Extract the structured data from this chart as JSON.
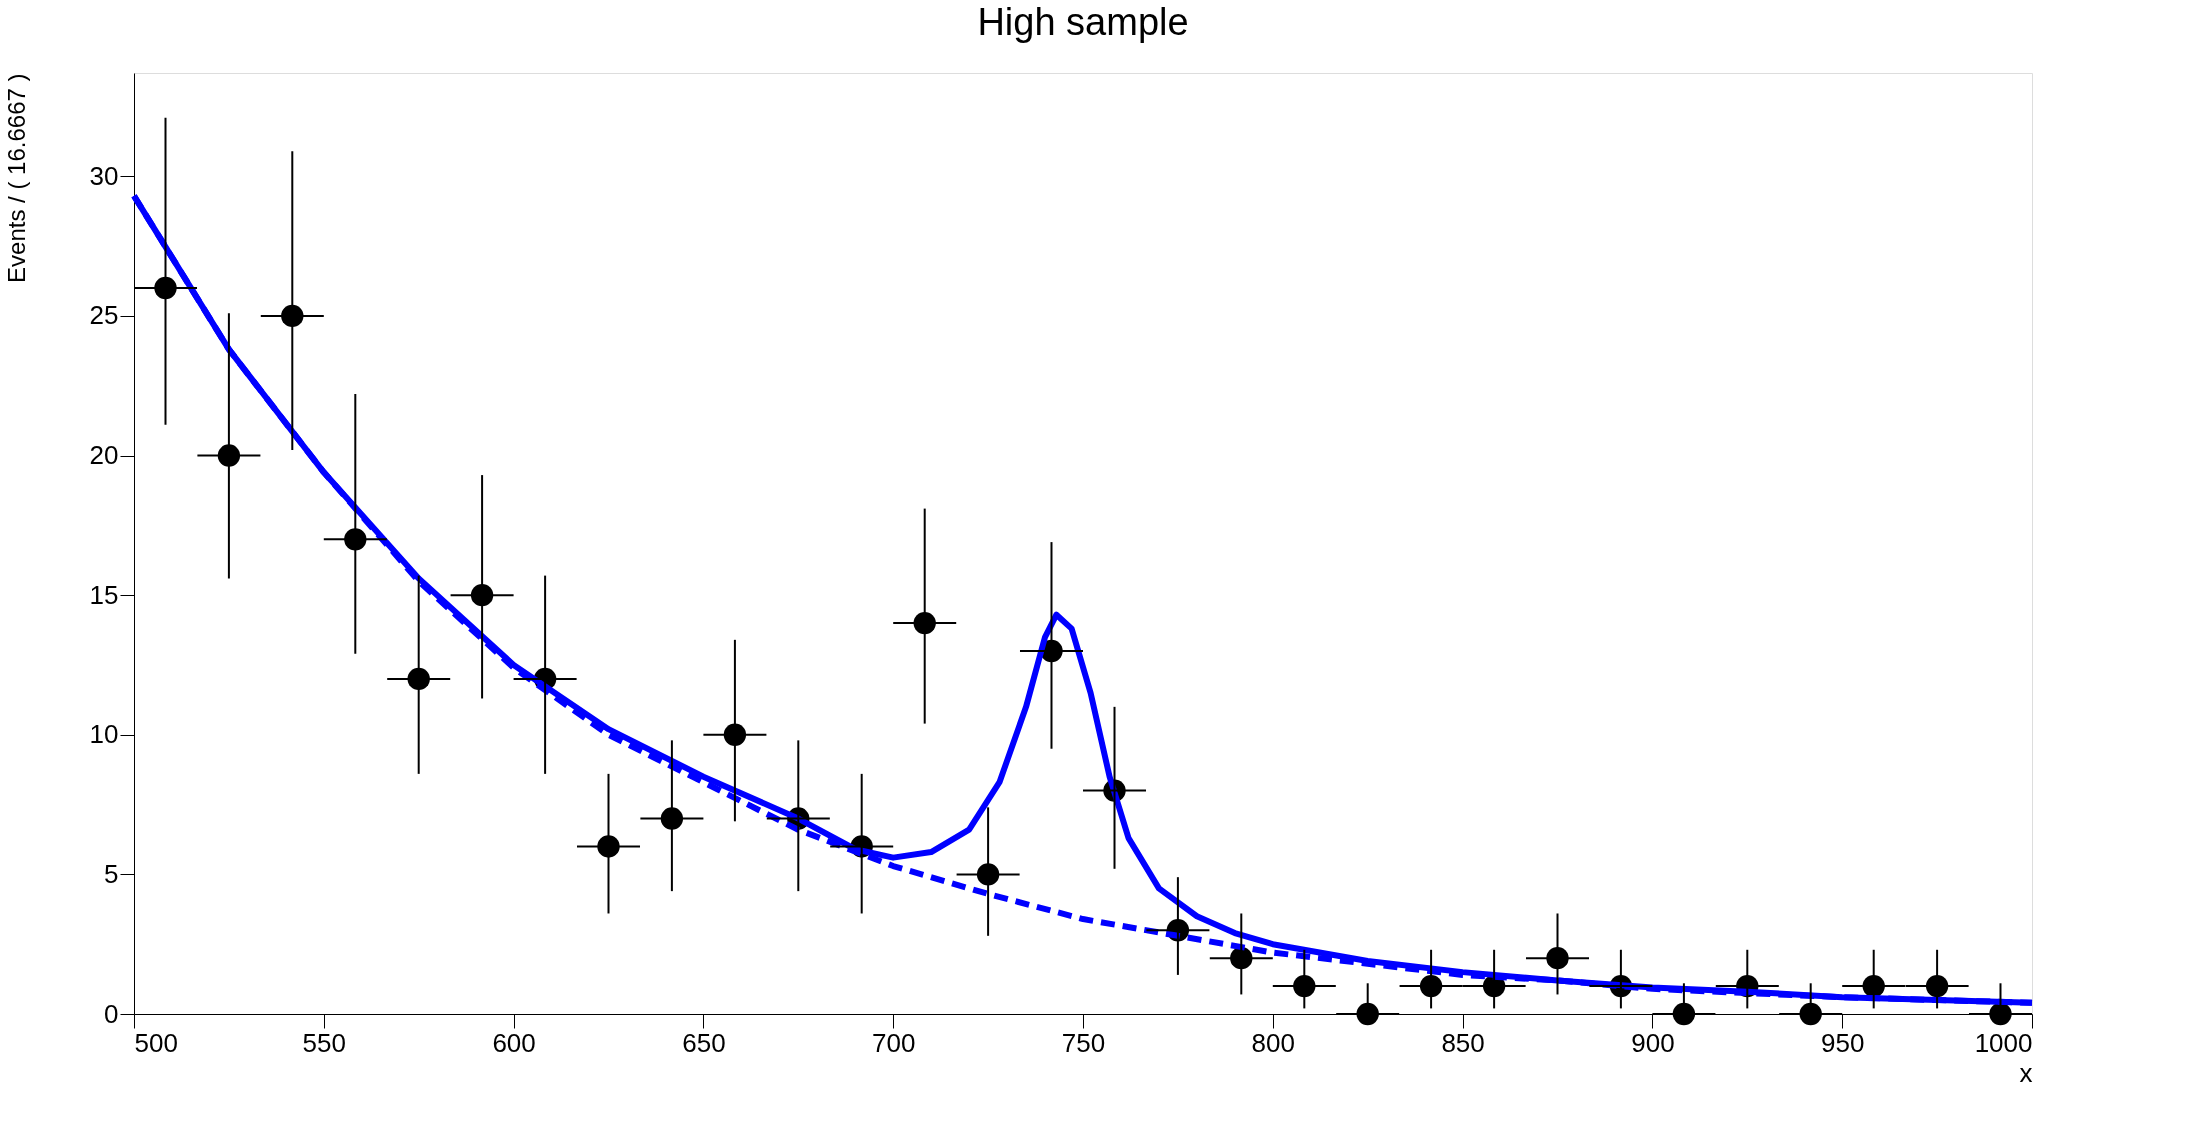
{
  "chart_data": {
    "type": "scatter",
    "title": "High sample",
    "xlabel": "x",
    "ylabel": "Events / ( 16.6667 )",
    "xlim": [
      500,
      1000
    ],
    "xticks": [
      500,
      550,
      600,
      650,
      700,
      750,
      800,
      850,
      900,
      950,
      1000
    ],
    "ylim": [
      0,
      33.7
    ],
    "yticks": [
      0,
      5,
      10,
      15,
      20,
      25,
      30
    ],
    "grid": false,
    "series": [
      {
        "marker": "circle",
        "color": "#000000",
        "x": [
          508.3,
          525,
          541.7,
          558.3,
          575,
          591.7,
          608.3,
          625,
          641.7,
          658.3,
          675,
          691.7,
          708.3,
          725,
          741.7,
          758.3,
          775,
          791.7,
          808.3,
          825,
          841.7,
          858.3,
          875,
          891.7,
          908.3,
          925,
          941.7,
          958.3,
          975,
          991.7
        ],
        "values": [
          26,
          20,
          25,
          17,
          12,
          15,
          12,
          6,
          7,
          10,
          7,
          6,
          14,
          5,
          13,
          8,
          3,
          2,
          1,
          0,
          1,
          1,
          2,
          1,
          0,
          1,
          0,
          1,
          1,
          0
        ],
        "errors": [
          [
            21.1,
            32.1
          ],
          [
            15.6,
            25.1
          ],
          [
            20.2,
            30.9
          ],
          [
            12.9,
            22.2
          ],
          [
            8.6,
            15.7
          ],
          [
            11.3,
            19.3
          ],
          [
            8.6,
            15.7
          ],
          [
            3.6,
            8.6
          ],
          [
            4.4,
            9.8
          ],
          [
            6.9,
            13.4
          ],
          [
            4.4,
            9.8
          ],
          [
            3.6,
            8.6
          ],
          [
            10.4,
            18.1
          ],
          [
            2.8,
            7.4
          ],
          [
            9.5,
            16.9
          ],
          [
            5.2,
            11.0
          ],
          [
            1.4,
            4.9
          ],
          [
            0.7,
            3.6
          ],
          [
            0.2,
            2.3
          ],
          [
            0,
            1.1
          ],
          [
            0.2,
            2.3
          ],
          [
            0.2,
            2.3
          ],
          [
            0.7,
            3.6
          ],
          [
            0.2,
            2.3
          ],
          [
            0,
            1.1
          ],
          [
            0.2,
            2.3
          ],
          [
            0,
            1.1
          ],
          [
            0.2,
            2.3
          ],
          [
            0.2,
            2.3
          ],
          [
            0,
            1.1
          ]
        ],
        "xerrors": [
          8.3,
          8.3,
          8.3,
          8.3,
          8.3,
          8.3,
          8.3,
          8.3,
          8.3,
          8.3,
          8.3,
          8.3,
          8.3,
          8.3,
          8.3,
          8.3,
          8.3,
          8.3,
          8.3,
          8.3,
          8.3,
          8.3,
          8.3,
          8.3,
          8.3,
          8.3,
          8.3,
          8.3,
          8.3,
          8.3
        ]
      },
      {
        "type": "line",
        "line_style": "dashed",
        "color": "#0000ff",
        "x": [
          500,
          525,
          550,
          575,
          600,
          625,
          650,
          675,
          700,
          725,
          750,
          775,
          800,
          825,
          850,
          875,
          900,
          925,
          950,
          975,
          1000
        ],
        "values": [
          29.3,
          23.8,
          19.4,
          15.5,
          12.4,
          10.0,
          8.3,
          6.6,
          5.3,
          4.3,
          3.4,
          2.8,
          2.2,
          1.8,
          1.4,
          1.2,
          0.9,
          0.75,
          0.6,
          0.5,
          0.4
        ]
      },
      {
        "type": "line",
        "line_style": "solid",
        "color": "#0000ff",
        "x": [
          500,
          525,
          550,
          575,
          600,
          625,
          650,
          675,
          690,
          700,
          710,
          720,
          728,
          735,
          740,
          743,
          747,
          752,
          757,
          762,
          770,
          780,
          790,
          800,
          825,
          850,
          875,
          900,
          925,
          950,
          975,
          1000
        ],
        "values": [
          29.3,
          23.8,
          19.4,
          15.6,
          12.5,
          10.2,
          8.5,
          7.0,
          5.9,
          5.6,
          5.8,
          6.6,
          8.3,
          11.0,
          13.5,
          14.3,
          13.8,
          11.5,
          8.5,
          6.3,
          4.5,
          3.5,
          2.9,
          2.5,
          1.9,
          1.5,
          1.2,
          0.95,
          0.8,
          0.6,
          0.5,
          0.4
        ]
      }
    ]
  }
}
